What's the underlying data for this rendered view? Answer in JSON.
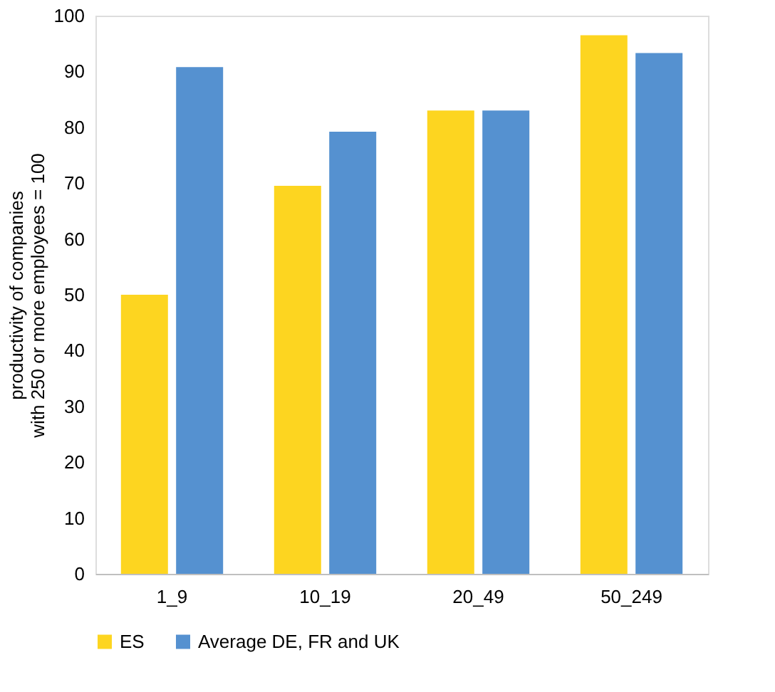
{
  "chart_data": {
    "type": "bar",
    "ylabel": "productivity of companies\nwith 250 or more employees = 100",
    "categories": [
      "1_9",
      "10_19",
      "20_49",
      "50_249"
    ],
    "series": [
      {
        "name": "ES",
        "color": "#fdd520",
        "values": [
          50,
          69.5,
          83,
          96.5
        ]
      },
      {
        "name": "Average DE, FR and UK",
        "color": "#5591d0",
        "values": [
          90.8,
          79.2,
          83,
          93.3
        ]
      }
    ],
    "ylim": [
      0,
      100
    ],
    "yticks": [
      0,
      10,
      20,
      30,
      40,
      50,
      60,
      70,
      80,
      90,
      100
    ],
    "grid": false,
    "legend": "bottom"
  }
}
